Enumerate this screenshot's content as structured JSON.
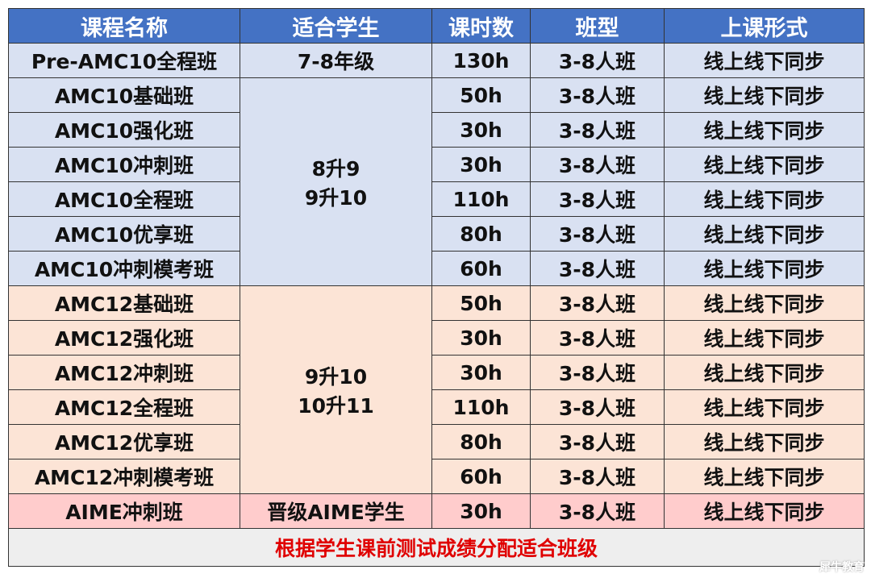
{
  "headers": [
    "课程名称",
    "适合学生",
    "课时数",
    "班型",
    "上课形式"
  ],
  "blue_group_students": [
    "8升9",
    "9升10"
  ],
  "peach_group_students": [
    "9升10",
    "10升11"
  ],
  "rows": [
    {
      "name": "Pre-AMC10全程班",
      "students": "7-8年级",
      "hours": "130h",
      "size": "3-8人班",
      "format": "线上线下同步"
    },
    {
      "name": "AMC10基础班",
      "hours": "50h",
      "size": "3-8人班",
      "format": "线上线下同步"
    },
    {
      "name": "AMC10强化班",
      "hours": "30h",
      "size": "3-8人班",
      "format": "线上线下同步"
    },
    {
      "name": "AMC10冲刺班",
      "hours": "30h",
      "size": "3-8人班",
      "format": "线上线下同步"
    },
    {
      "name": "AMC10全程班",
      "hours": "110h",
      "size": "3-8人班",
      "format": "线上线下同步"
    },
    {
      "name": "AMC10优享班",
      "hours": "80h",
      "size": "3-8人班",
      "format": "线上线下同步"
    },
    {
      "name": "AMC10冲刺模考班",
      "hours": "60h",
      "size": "3-8人班",
      "format": "线上线下同步"
    },
    {
      "name": "AMC12基础班",
      "hours": "50h",
      "size": "3-8人班",
      "format": "线上线下同步"
    },
    {
      "name": "AMC12强化班",
      "hours": "30h",
      "size": "3-8人班",
      "format": "线上线下同步"
    },
    {
      "name": "AMC12冲刺班",
      "hours": "30h",
      "size": "3-8人班",
      "format": "线上线下同步"
    },
    {
      "name": "AMC12全程班",
      "hours": "110h",
      "size": "3-8人班",
      "format": "线上线下同步"
    },
    {
      "name": "AMC12优享班",
      "hours": "80h",
      "size": "3-8人班",
      "format": "线上线下同步"
    },
    {
      "name": "AMC12冲刺模考班",
      "hours": "60h",
      "size": "3-8人班",
      "format": "线上线下同步"
    },
    {
      "name": "AIME冲刺班",
      "students": "晋级AIME学生",
      "hours": "30h",
      "size": "3-8人班",
      "format": "线上线下同步"
    }
  ],
  "footer": "根据学生课前测试成绩分配适合班级",
  "watermark": "犀牛教育",
  "colors": {
    "header": "#4472C4",
    "amc10": "#D9E1F2",
    "amc12": "#FCE4D6",
    "aime": "#FFCCCC",
    "footer_text": "#E00000"
  }
}
